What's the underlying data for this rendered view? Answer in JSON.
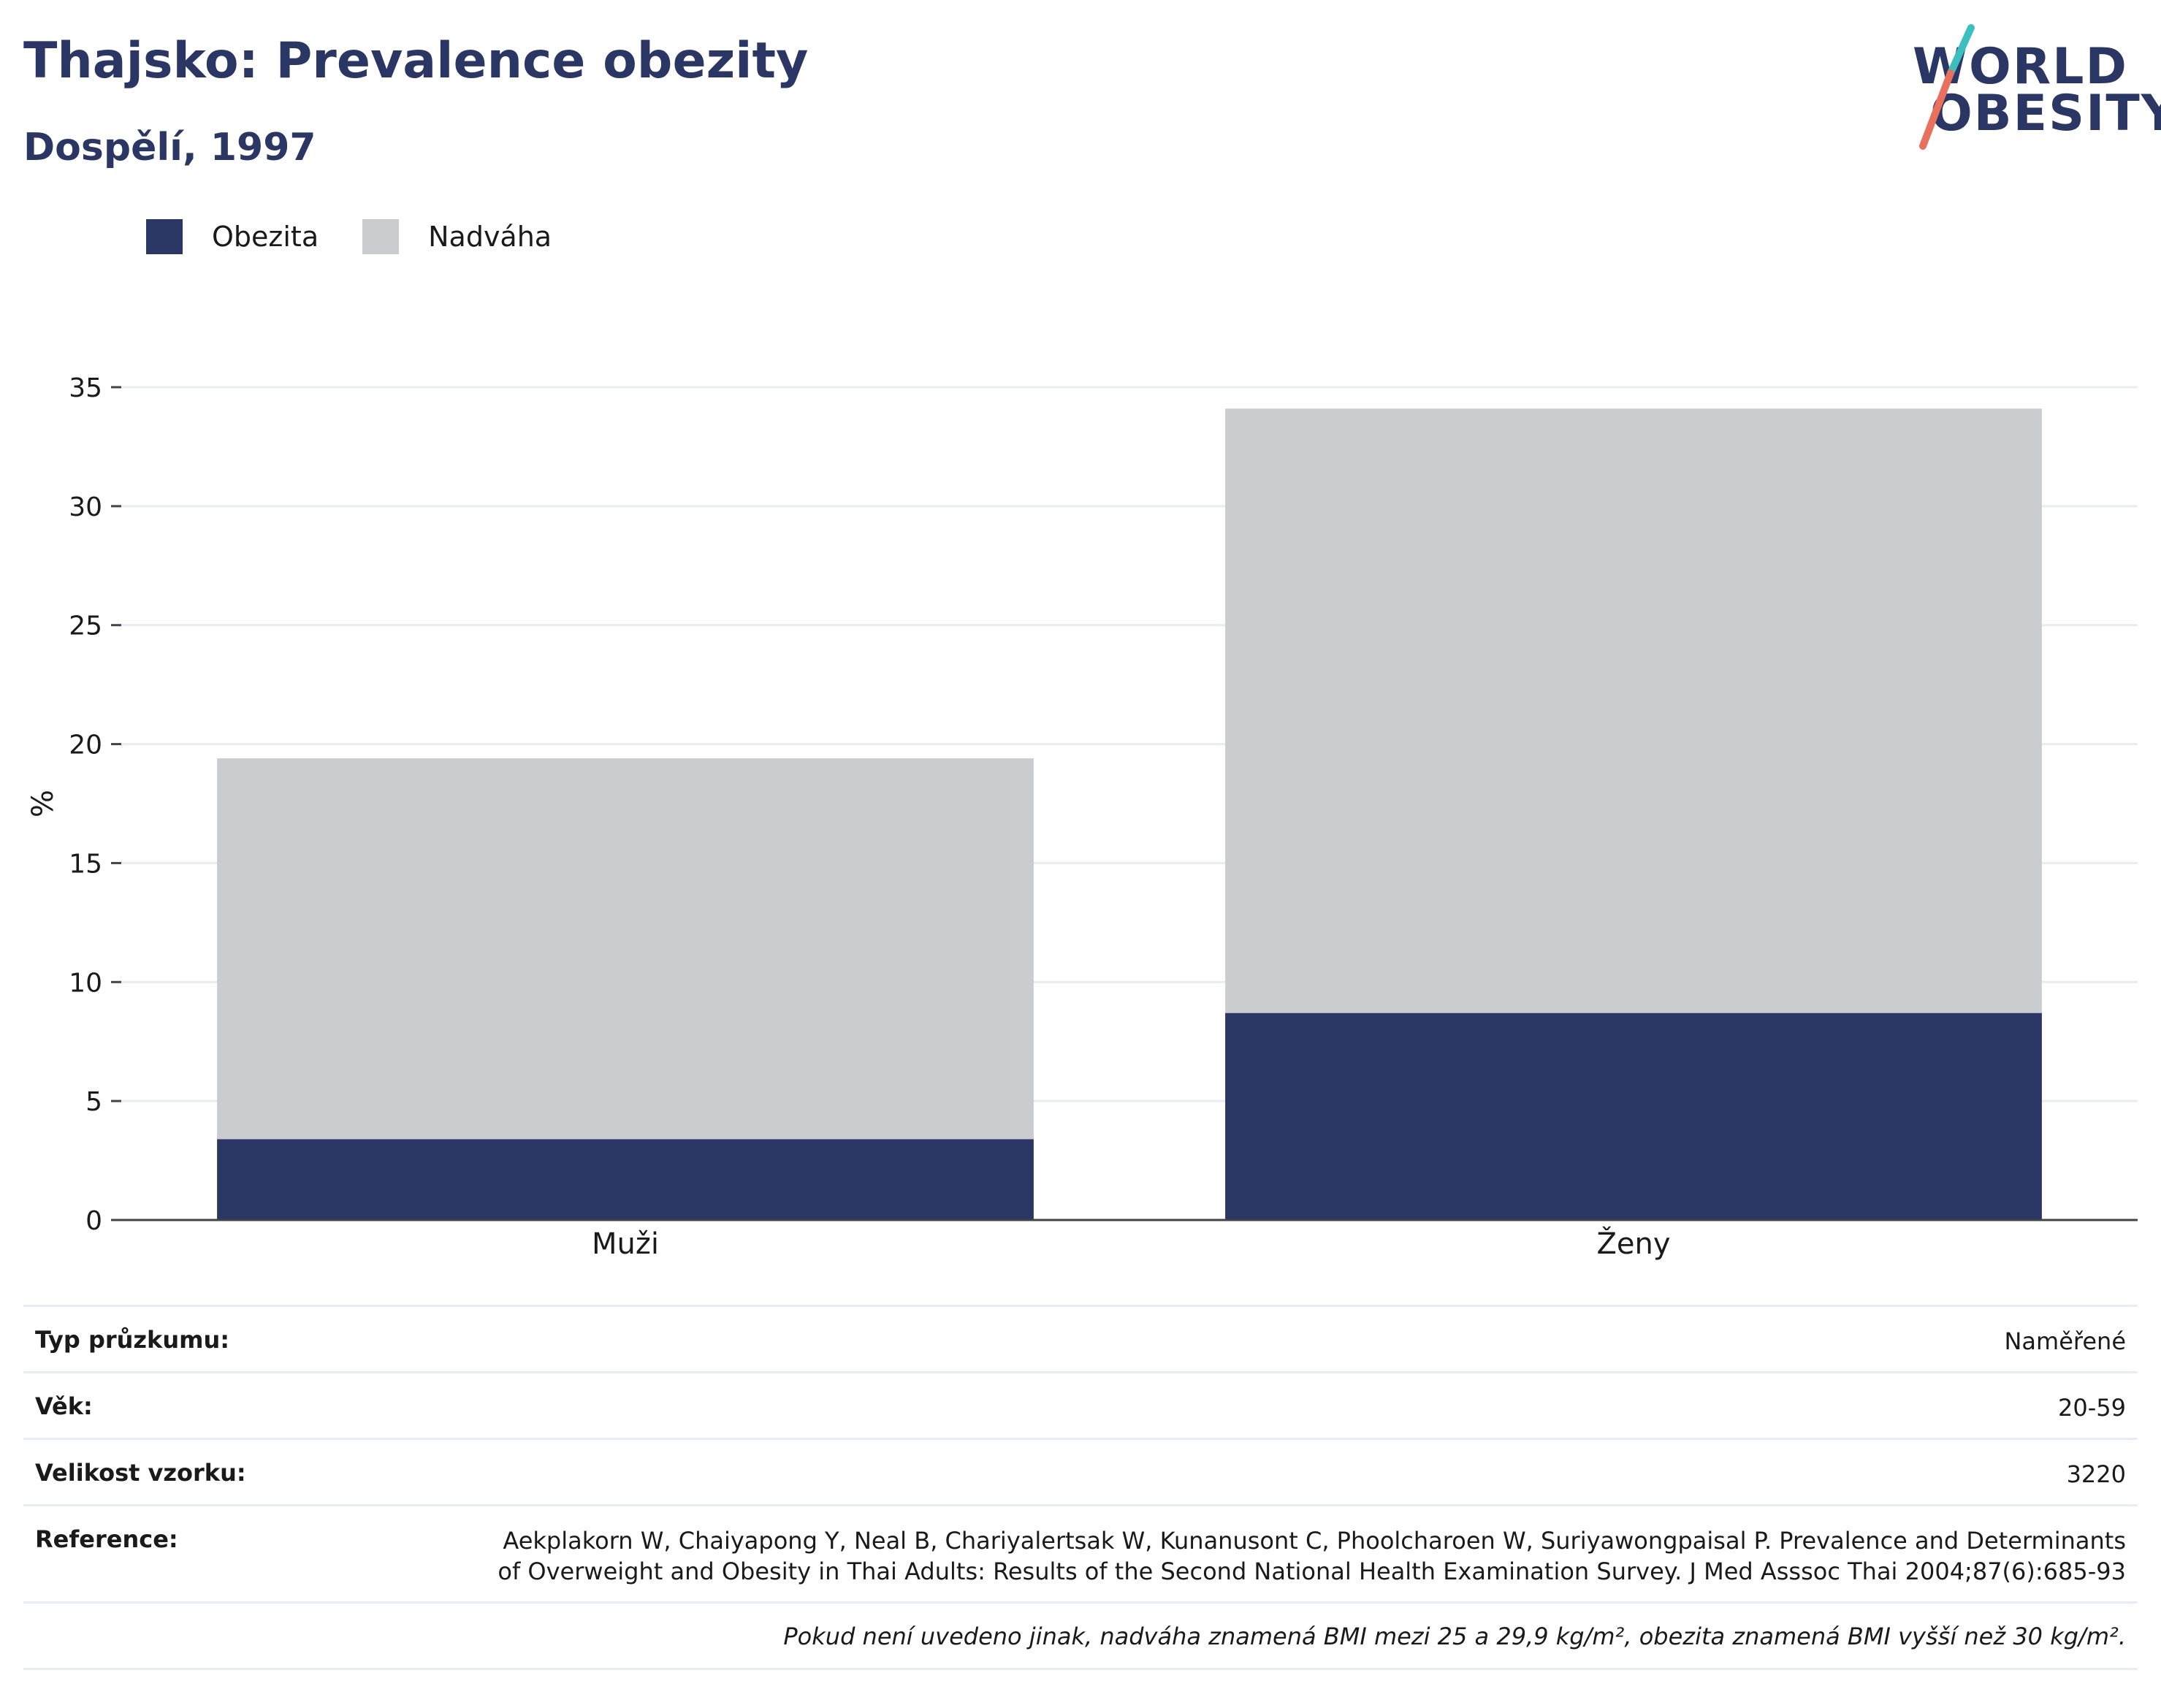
{
  "header": {
    "title": "Thajsko: Prevalence obezity",
    "subtitle": "Dospělí, 1997"
  },
  "logo": {
    "line1": "WORLD",
    "line2": "OBESITY",
    "colors": {
      "text": "#2a3664",
      "slash_top": "#3cbfbf",
      "slash_bottom": "#e8705c"
    }
  },
  "legend": [
    {
      "label": "Obezita",
      "color": "#2a3664"
    },
    {
      "label": "Nadváha",
      "color": "#cacccf"
    }
  ],
  "chart_data": {
    "type": "bar",
    "stacked": true,
    "categories": [
      "Muži",
      "Ženy"
    ],
    "series": [
      {
        "name": "Obezita",
        "values": [
          3.4,
          8.7
        ],
        "color": "#2a3664"
      },
      {
        "name": "Nadváha",
        "values": [
          16.0,
          25.4
        ],
        "color": "#cacccf"
      }
    ],
    "ylabel": "%",
    "ylim": [
      0,
      35
    ],
    "yticks": [
      0,
      5,
      10,
      15,
      20,
      25,
      30,
      35
    ],
    "grid": true,
    "legend_position": "top-left"
  },
  "info": {
    "rows": [
      {
        "key": "Typ průzkumu:",
        "value": "Naměřené"
      },
      {
        "key": "Věk:",
        "value": "20-59"
      },
      {
        "key": "Velikost vzorku:",
        "value": "3220"
      }
    ],
    "reference": {
      "key": "Reference:",
      "value": "Aekplakorn W, Chaiyapong Y, Neal B, Chariyalertsak W, Kunanusont C, Phoolcharoen W, Suriyawongpaisal P. Prevalence and Determinants of Overweight and Obesity in Thai Adults: Results of the Second National Health Examination Survey. J Med Asssoc Thai 2004;87(6):685-93"
    },
    "footnote": "Pokud není uvedeno jinak, nadváha znamená BMI mezi 25 a 29,9 kg/m², obezita znamená BMI vyšší než 30 kg/m²."
  }
}
